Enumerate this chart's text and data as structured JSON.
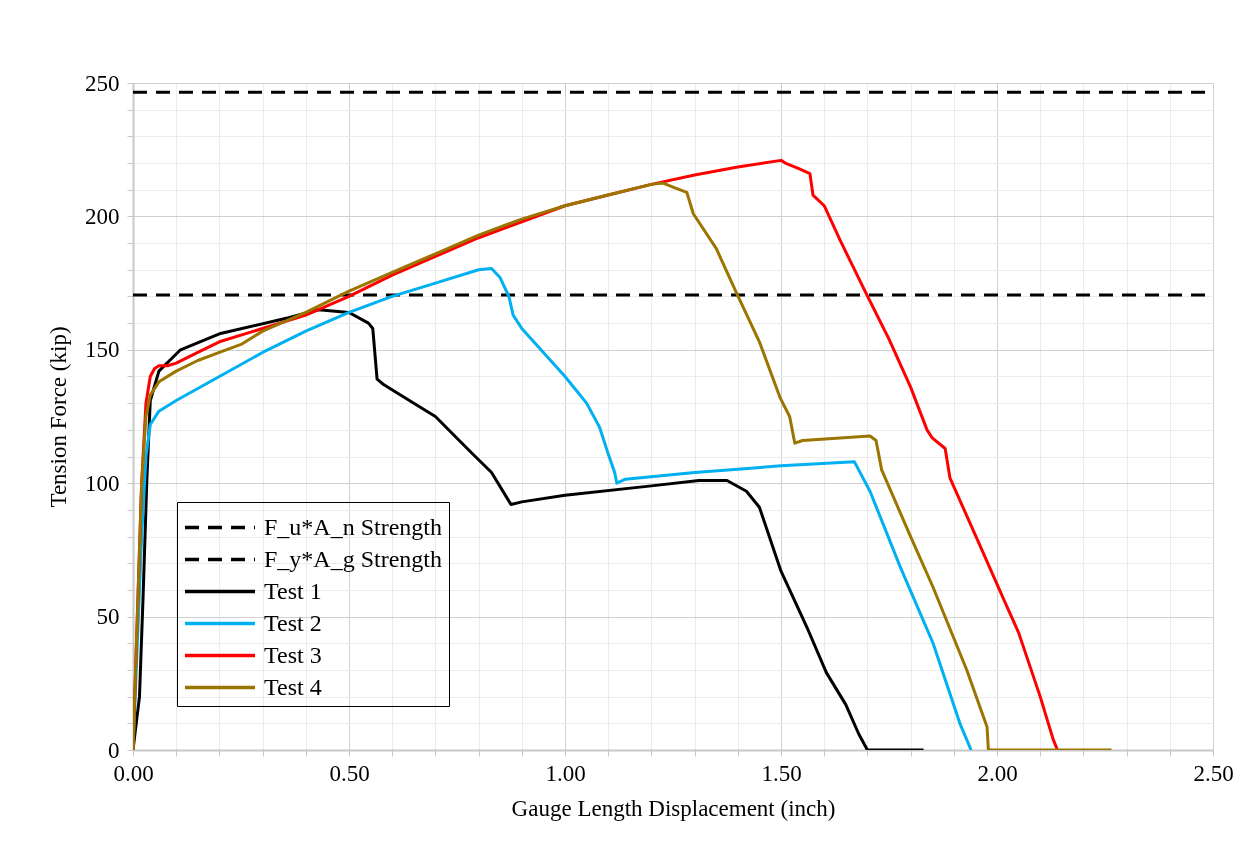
{
  "chart_data": {
    "type": "line",
    "xlabel": "Gauge Length Displacement (inch)",
    "ylabel": "Tension Force (kip)",
    "xlim": [
      0,
      2.5
    ],
    "ylim": [
      0,
      250
    ],
    "xticks": [
      {
        "value": 0,
        "label": "0.00"
      },
      {
        "value": 0.1,
        "label": null
      },
      {
        "value": 0.2,
        "label": null
      },
      {
        "value": 0.3,
        "label": null
      },
      {
        "value": 0.4,
        "label": null
      },
      {
        "value": 0.5,
        "label": "0.50"
      },
      {
        "value": 0.6,
        "label": null
      },
      {
        "value": 0.7,
        "label": null
      },
      {
        "value": 0.8,
        "label": null
      },
      {
        "value": 0.9,
        "label": null
      },
      {
        "value": 1,
        "label": "1.00"
      },
      {
        "value": 1.1,
        "label": null
      },
      {
        "value": 1.2,
        "label": null
      },
      {
        "value": 1.3,
        "label": null
      },
      {
        "value": 1.4,
        "label": null
      },
      {
        "value": 1.5,
        "label": "1.50"
      },
      {
        "value": 1.6,
        "label": null
      },
      {
        "value": 1.7,
        "label": null
      },
      {
        "value": 1.8,
        "label": null
      },
      {
        "value": 1.9,
        "label": null
      },
      {
        "value": 2,
        "label": "2.00"
      },
      {
        "value": 2.1,
        "label": null
      },
      {
        "value": 2.2,
        "label": null
      },
      {
        "value": 2.3,
        "label": null
      },
      {
        "value": 2.4,
        "label": null
      },
      {
        "value": 2.5,
        "label": "2.50"
      }
    ],
    "yticks": [
      0,
      {
        "value": 10,
        "label": null
      },
      {
        "value": 20,
        "label": null
      },
      {
        "value": 30,
        "label": null
      },
      {
        "value": 40,
        "label": null
      },
      50,
      {
        "value": 60,
        "label": null
      },
      {
        "value": 70,
        "label": null
      },
      {
        "value": 80,
        "label": null
      },
      {
        "value": 90,
        "label": null
      },
      100,
      {
        "value": 110,
        "label": null
      },
      {
        "value": 120,
        "label": null
      },
      {
        "value": 130,
        "label": null
      },
      {
        "value": 140,
        "label": null
      },
      150,
      {
        "value": 160,
        "label": null
      },
      {
        "value": 170,
        "label": null
      },
      {
        "value": 180,
        "label": null
      },
      {
        "value": 190,
        "label": null
      },
      200,
      {
        "value": 210,
        "label": null
      },
      {
        "value": 220,
        "label": null
      },
      {
        "value": 230,
        "label": null
      },
      {
        "value": 240,
        "label": null
      },
      250
    ],
    "grid": true,
    "legend": "bottom left",
    "series": [
      {
        "name": "F_u*A_n Strength",
        "color": "#000000",
        "line_style": "dashed",
        "x": [
          0,
          2.5
        ],
        "values": [
          246.5,
          246.5
        ]
      },
      {
        "name": "F_y*A_g Strength",
        "color": "#000000",
        "line_style": "dashed",
        "x": [
          0,
          2.5
        ],
        "values": [
          170.5,
          170.5
        ]
      },
      {
        "name": "Test 1",
        "color": "#000000",
        "line_style": "solid",
        "x": [
          0,
          0.015,
          0.023,
          0.032,
          0.04,
          0.06,
          0.11,
          0.2,
          0.36,
          0.43,
          0.5,
          0.545,
          0.555,
          0.565,
          0.58,
          0.65,
          0.7,
          0.78,
          0.83,
          0.86,
          0.875,
          0.9,
          1.0,
          1.2,
          1.31,
          1.375,
          1.42,
          1.45,
          1.5,
          1.56,
          1.605,
          1.65,
          1.68,
          1.7,
          1.83
        ],
        "values": [
          0,
          20,
          56,
          101,
          131,
          142,
          150,
          156,
          162,
          165,
          164,
          160,
          158,
          139,
          137,
          130,
          125,
          112,
          104,
          96,
          92,
          93,
          95.5,
          99,
          101,
          101,
          97,
          91,
          67,
          46,
          29,
          17,
          6,
          0,
          0
        ]
      },
      {
        "name": "Test 2",
        "color": "#00b0f0",
        "line_style": "solid",
        "x": [
          0,
          0.02,
          0.03,
          0.04,
          0.06,
          0.1,
          0.2,
          0.3,
          0.4,
          0.5,
          0.6,
          0.7,
          0.8,
          0.83,
          0.85,
          0.87,
          0.88,
          0.9,
          0.95,
          1.0,
          1.05,
          1.08,
          1.1,
          1.115,
          1.12,
          1.14,
          1.3,
          1.5,
          1.67,
          1.706,
          1.775,
          1.852,
          1.914,
          1.94
        ],
        "values": [
          0,
          80,
          110,
          122,
          127,
          131,
          140,
          149,
          157,
          164,
          170,
          175,
          180,
          180.5,
          177,
          170,
          163,
          158,
          149,
          140,
          130,
          121,
          111,
          104,
          100,
          101.5,
          104,
          106.5,
          108,
          97,
          69,
          40,
          10,
          0
        ]
      },
      {
        "name": "Test 3",
        "color": "#ff0000",
        "line_style": "solid",
        "x": [
          0,
          0.02,
          0.03,
          0.04,
          0.05,
          0.06,
          0.08,
          0.1,
          0.15,
          0.2,
          0.3,
          0.4,
          0.5,
          0.6,
          0.7,
          0.8,
          0.9,
          1.0,
          1.1,
          1.2,
          1.3,
          1.4,
          1.5,
          1.51,
          1.54,
          1.567,
          1.574,
          1.6,
          1.637,
          1.699,
          1.75,
          1.8,
          1.838,
          1.85,
          1.88,
          1.891,
          1.954,
          2.014,
          2.05,
          2.1,
          2.13,
          2.14
        ],
        "values": [
          0,
          100,
          130,
          140,
          143,
          144,
          144,
          145,
          149,
          153,
          158,
          163,
          170,
          178,
          185,
          192,
          198,
          204,
          208,
          212,
          215.5,
          218.5,
          221,
          220,
          218,
          216,
          208,
          204,
          191,
          170.5,
          154,
          136,
          120,
          117,
          113,
          102,
          79,
          57,
          44,
          20,
          4,
          0
        ]
      },
      {
        "name": "Test 4",
        "color": "#9c7400",
        "line_style": "solid",
        "x": [
          0,
          0.02,
          0.03,
          0.04,
          0.06,
          0.1,
          0.15,
          0.2,
          0.25,
          0.3,
          0.4,
          0.5,
          0.6,
          0.7,
          0.8,
          0.9,
          1.0,
          1.1,
          1.2,
          1.227,
          1.25,
          1.282,
          1.297,
          1.35,
          1.398,
          1.45,
          1.498,
          1.52,
          1.532,
          1.55,
          1.706,
          1.72,
          1.733,
          1.8,
          1.852,
          1.93,
          1.977,
          1.98,
          2.265
        ],
        "values": [
          0,
          100,
          125,
          133,
          138,
          142,
          146,
          149,
          152,
          157,
          164,
          172,
          179,
          186,
          193,
          199,
          204,
          208,
          212,
          212.5,
          211,
          209,
          201,
          188,
          171,
          153,
          132,
          125,
          115,
          116,
          117.7,
          116,
          105,
          80,
          61,
          30,
          8.6,
          0,
          0
        ]
      }
    ]
  }
}
